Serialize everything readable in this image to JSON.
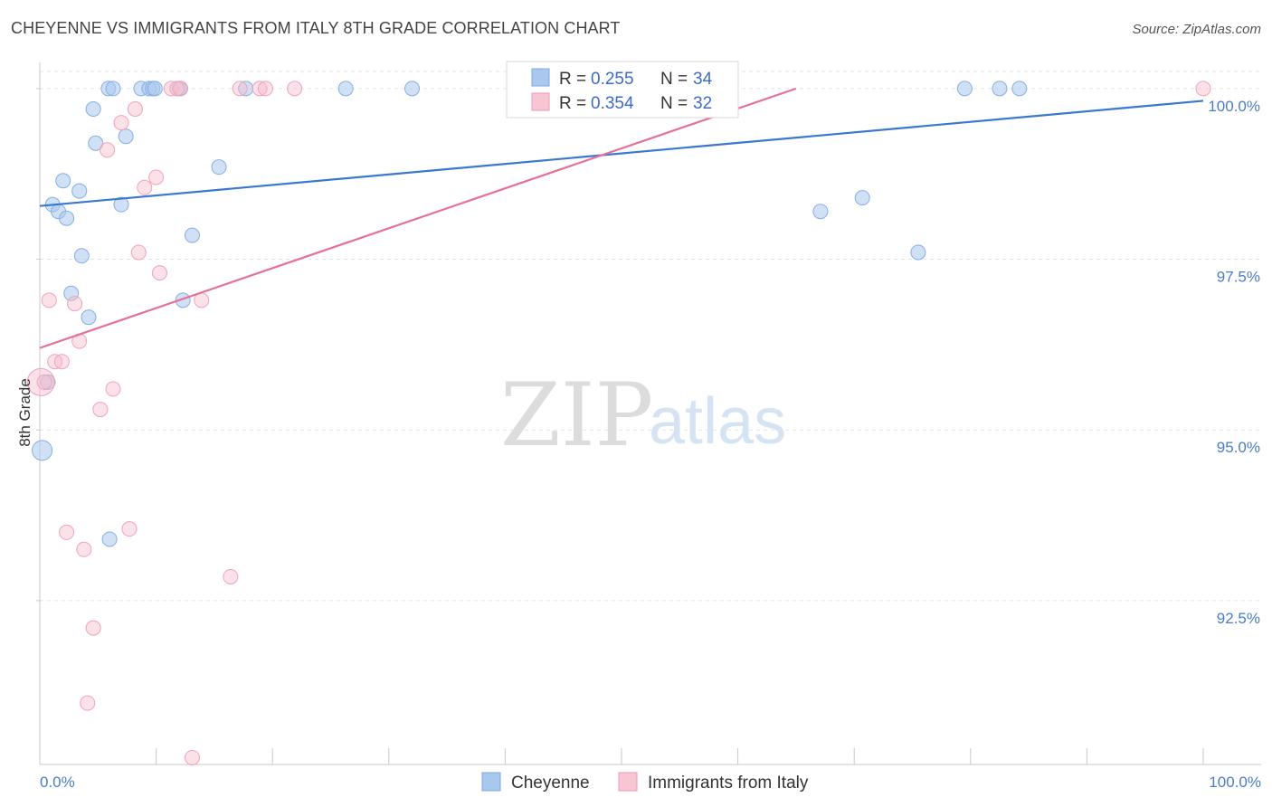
{
  "title": "CHEYENNE VS IMMIGRANTS FROM ITALY 8TH GRADE CORRELATION CHART",
  "source": "Source: ZipAtlas.com",
  "watermark": {
    "zip": "ZIP",
    "atlas": "atlas"
  },
  "chart_data": {
    "type": "scatter",
    "xlabel": "",
    "ylabel": "8th Grade",
    "xlim": [
      0,
      100
    ],
    "ylim": [
      90.1,
      100.25
    ],
    "x_tick_labels": [
      "0.0%",
      "100.0%"
    ],
    "y_ticks": [
      {
        "value": 100.0,
        "label": "100.0%"
      },
      {
        "value": 97.5,
        "label": "97.5%"
      },
      {
        "value": 95.0,
        "label": "95.0%"
      },
      {
        "value": 92.5,
        "label": "92.5%"
      }
    ],
    "colors": {
      "Cheyenne": "#a9c8ef",
      "Cheyenne_line": "#3a78d0",
      "Italy": "#f6bccb",
      "Italy_line": "#e5709a"
    },
    "legend": [
      {
        "name": "Cheyenne",
        "r_label": "R = ",
        "r_value": "0.255",
        "n_label": "N = ",
        "n_value": "34"
      },
      {
        "name": "Immigrants from Italy",
        "r_label": "R = ",
        "r_value": "0.354",
        "n_label": "N = ",
        "n_value": "32"
      }
    ],
    "series": [
      {
        "name": "Cheyenne",
        "trend": {
          "x0": 0,
          "y0": 98.28,
          "x1": 100,
          "y1": 99.82
        },
        "points": [
          [
            0.2,
            94.7,
            22
          ],
          [
            0.7,
            95.7,
            14
          ],
          [
            1.1,
            98.3,
            14
          ],
          [
            1.6,
            98.2,
            14
          ],
          [
            2.0,
            98.65,
            14
          ],
          [
            2.3,
            98.1,
            14
          ],
          [
            2.7,
            97.0,
            14
          ],
          [
            3.4,
            98.5,
            14
          ],
          [
            3.6,
            97.55,
            14
          ],
          [
            4.2,
            96.65,
            14
          ],
          [
            4.6,
            99.7,
            14
          ],
          [
            4.8,
            99.2,
            14
          ],
          [
            5.9,
            100.0,
            14
          ],
          [
            6.0,
            93.4,
            14
          ],
          [
            6.3,
            100.0,
            14
          ],
          [
            7.0,
            98.3,
            14
          ],
          [
            7.4,
            99.3,
            14
          ],
          [
            8.7,
            100.0,
            14
          ],
          [
            9.4,
            100.0,
            14
          ],
          [
            9.7,
            100.0,
            14
          ],
          [
            9.9,
            100.0,
            14
          ],
          [
            12.0,
            100.0,
            14
          ],
          [
            12.3,
            96.9,
            14
          ],
          [
            13.1,
            97.85,
            14
          ],
          [
            15.4,
            98.85,
            14
          ],
          [
            17.7,
            100.0,
            14
          ],
          [
            26.3,
            100.0,
            14
          ],
          [
            32.0,
            100.0,
            14
          ],
          [
            67.1,
            98.2,
            14
          ],
          [
            70.7,
            98.4,
            14
          ],
          [
            75.5,
            97.6,
            14
          ],
          [
            79.5,
            100.0,
            14
          ],
          [
            82.5,
            100.0,
            14
          ],
          [
            84.2,
            100.0,
            14
          ]
        ]
      },
      {
        "name": "Immigrants from Italy",
        "trend": {
          "x0": 0,
          "y0": 96.2,
          "x1": 65,
          "y1": 100.0
        },
        "points": [
          [
            0.1,
            95.7,
            30
          ],
          [
            0.8,
            96.9,
            14
          ],
          [
            1.3,
            96.0,
            14
          ],
          [
            1.9,
            96.0,
            14
          ],
          [
            2.3,
            93.5,
            14
          ],
          [
            3.0,
            96.85,
            14
          ],
          [
            3.4,
            96.3,
            14
          ],
          [
            3.8,
            93.25,
            14
          ],
          [
            4.1,
            91.0,
            14
          ],
          [
            4.6,
            92.1,
            14
          ],
          [
            5.2,
            95.3,
            14
          ],
          [
            5.8,
            99.1,
            14
          ],
          [
            6.3,
            95.6,
            14
          ],
          [
            7.0,
            99.5,
            14
          ],
          [
            7.7,
            93.55,
            14
          ],
          [
            8.2,
            99.7,
            14
          ],
          [
            8.5,
            97.6,
            14
          ],
          [
            9.0,
            98.55,
            14
          ],
          [
            10.0,
            98.7,
            14
          ],
          [
            10.3,
            97.3,
            14
          ],
          [
            11.3,
            100.0,
            14
          ],
          [
            12.1,
            100.0,
            14
          ],
          [
            13.1,
            90.2,
            14
          ],
          [
            13.9,
            96.9,
            14
          ],
          [
            16.4,
            92.85,
            14
          ],
          [
            17.2,
            100.0,
            14
          ],
          [
            18.9,
            100.0,
            14
          ],
          [
            19.4,
            100.0,
            14
          ],
          [
            21.9,
            100.0,
            14
          ],
          [
            100.0,
            100.0,
            14
          ],
          [
            0.4,
            95.7,
            14
          ],
          [
            11.8,
            100.0,
            14
          ]
        ]
      }
    ]
  }
}
